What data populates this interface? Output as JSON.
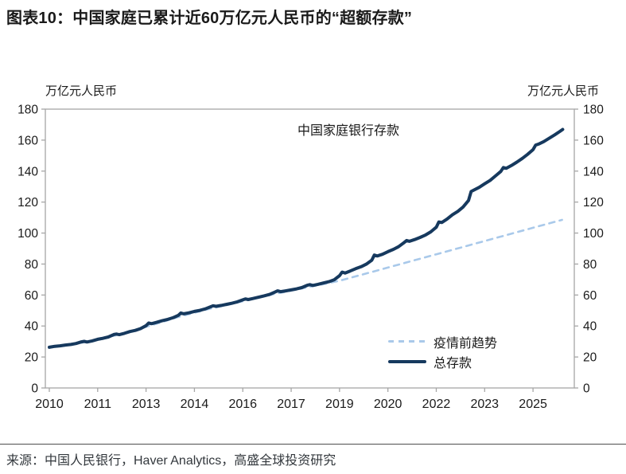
{
  "title": "图表10：中国家庭已累计近60万亿元人民币的“超额存款”",
  "source": "来源：中国人民银行，Haver Analytics，高盛全球投资研究",
  "chart_data": {
    "type": "line",
    "annotation": "中国家庭银行存款",
    "unit_left": "万亿元人民币",
    "unit_right": "万亿元人民币",
    "xlim": [
      2009.877,
      2026.28
    ],
    "ylim": [
      0,
      180
    ],
    "y_ticks": [
      0,
      20,
      40,
      60,
      80,
      100,
      120,
      140,
      160,
      180
    ],
    "x_tick_labels": [
      "2010",
      "2011",
      "2013",
      "2014",
      "2016",
      "2017",
      "2019",
      "2020",
      "2022",
      "2023",
      "2025"
    ],
    "x_tick_times": [
      2010.0,
      2011.5,
      2013.0,
      2014.5,
      2016.0,
      2017.5,
      2019.0,
      2020.5,
      2022.0,
      2023.5,
      2025.0
    ],
    "grid": false,
    "legend_position": "inside-lower-right",
    "axis_color": "#A6A6A6",
    "tick_label_color": "#1a1a1a",
    "series": [
      {
        "name": "疫情前趋势",
        "style": "dashed",
        "color": "#A9C9EA",
        "width": 2.6,
        "points": [
          [
            2010.0,
            26.0
          ],
          [
            2010.5,
            27.4
          ],
          [
            2011.0,
            29.2
          ],
          [
            2011.5,
            31.2
          ],
          [
            2012.0,
            33.7
          ],
          [
            2012.5,
            36.2
          ],
          [
            2013.0,
            39.5
          ],
          [
            2013.5,
            42.6
          ],
          [
            2014.0,
            45.8
          ],
          [
            2014.5,
            48.6
          ],
          [
            2015.0,
            51.3
          ],
          [
            2015.5,
            53.5
          ],
          [
            2016.0,
            56.0
          ],
          [
            2016.5,
            58.2
          ],
          [
            2017.0,
            60.8
          ],
          [
            2017.5,
            62.8
          ],
          [
            2018.0,
            65.0
          ],
          [
            2018.5,
            67.0
          ],
          [
            2019.0,
            69.2
          ],
          [
            2020.0,
            74.9
          ],
          [
            2021.0,
            80.6
          ],
          [
            2022.0,
            86.3
          ],
          [
            2023.0,
            92.0
          ],
          [
            2024.0,
            97.7
          ],
          [
            2025.0,
            103.4
          ],
          [
            2025.9,
            108.5
          ]
        ]
      },
      {
        "name": "总存款",
        "style": "solid",
        "color": "#16395E",
        "width": 4,
        "points": [
          [
            2010.0,
            26.3
          ],
          [
            2010.17,
            26.9
          ],
          [
            2010.33,
            27.2
          ],
          [
            2010.5,
            27.7
          ],
          [
            2010.67,
            28.1
          ],
          [
            2010.83,
            28.7
          ],
          [
            2011.0,
            29.8
          ],
          [
            2011.08,
            30.1
          ],
          [
            2011.17,
            29.7
          ],
          [
            2011.33,
            30.4
          ],
          [
            2011.5,
            31.4
          ],
          [
            2011.67,
            32.1
          ],
          [
            2011.83,
            32.9
          ],
          [
            2012.0,
            34.5
          ],
          [
            2012.08,
            34.8
          ],
          [
            2012.17,
            34.4
          ],
          [
            2012.33,
            35.3
          ],
          [
            2012.5,
            36.4
          ],
          [
            2012.67,
            37.2
          ],
          [
            2012.83,
            38.3
          ],
          [
            2013.0,
            40.2
          ],
          [
            2013.08,
            41.9
          ],
          [
            2013.17,
            41.5
          ],
          [
            2013.33,
            42.4
          ],
          [
            2013.5,
            43.4
          ],
          [
            2013.67,
            44.3
          ],
          [
            2013.83,
            45.3
          ],
          [
            2014.0,
            46.9
          ],
          [
            2014.08,
            48.4
          ],
          [
            2014.17,
            47.9
          ],
          [
            2014.33,
            48.5
          ],
          [
            2014.5,
            49.4
          ],
          [
            2014.67,
            50.1
          ],
          [
            2014.83,
            51.0
          ],
          [
            2015.0,
            52.4
          ],
          [
            2015.08,
            53.1
          ],
          [
            2015.17,
            52.7
          ],
          [
            2015.33,
            53.3
          ],
          [
            2015.5,
            54.0
          ],
          [
            2015.67,
            54.7
          ],
          [
            2015.83,
            55.6
          ],
          [
            2016.0,
            56.9
          ],
          [
            2016.08,
            57.5
          ],
          [
            2016.17,
            57.1
          ],
          [
            2016.33,
            57.8
          ],
          [
            2016.5,
            58.7
          ],
          [
            2016.67,
            59.5
          ],
          [
            2016.83,
            60.4
          ],
          [
            2017.0,
            61.9
          ],
          [
            2017.08,
            62.7
          ],
          [
            2017.17,
            62.2
          ],
          [
            2017.33,
            62.7
          ],
          [
            2017.5,
            63.3
          ],
          [
            2017.67,
            64.0
          ],
          [
            2017.83,
            64.8
          ],
          [
            2018.0,
            66.3
          ],
          [
            2018.08,
            66.7
          ],
          [
            2018.17,
            66.2
          ],
          [
            2018.33,
            66.9
          ],
          [
            2018.5,
            67.8
          ],
          [
            2018.67,
            68.6
          ],
          [
            2018.83,
            69.8
          ],
          [
            2019.0,
            72.5
          ],
          [
            2019.08,
            74.8
          ],
          [
            2019.17,
            74.2
          ],
          [
            2019.33,
            75.5
          ],
          [
            2019.5,
            77.0
          ],
          [
            2019.67,
            78.3
          ],
          [
            2019.83,
            79.9
          ],
          [
            2020.0,
            82.5
          ],
          [
            2020.08,
            85.8
          ],
          [
            2020.17,
            85.2
          ],
          [
            2020.33,
            86.3
          ],
          [
            2020.5,
            88.0
          ],
          [
            2020.67,
            89.5
          ],
          [
            2020.83,
            91.2
          ],
          [
            2021.0,
            93.8
          ],
          [
            2021.08,
            95.2
          ],
          [
            2021.17,
            94.7
          ],
          [
            2021.33,
            95.8
          ],
          [
            2021.5,
            97.2
          ],
          [
            2021.67,
            98.8
          ],
          [
            2021.83,
            100.8
          ],
          [
            2022.0,
            103.8
          ],
          [
            2022.08,
            107.2
          ],
          [
            2022.17,
            106.8
          ],
          [
            2022.33,
            109.0
          ],
          [
            2022.5,
            111.8
          ],
          [
            2022.67,
            114.0
          ],
          [
            2022.83,
            116.8
          ],
          [
            2023.0,
            121.0
          ],
          [
            2023.08,
            126.8
          ],
          [
            2023.17,
            127.8
          ],
          [
            2023.33,
            129.5
          ],
          [
            2023.5,
            131.8
          ],
          [
            2023.67,
            134.0
          ],
          [
            2023.83,
            136.8
          ],
          [
            2024.0,
            139.8
          ],
          [
            2024.08,
            142.3
          ],
          [
            2024.17,
            141.8
          ],
          [
            2024.33,
            143.6
          ],
          [
            2024.5,
            145.8
          ],
          [
            2024.67,
            148.2
          ],
          [
            2024.83,
            150.8
          ],
          [
            2025.0,
            153.8
          ],
          [
            2025.08,
            156.8
          ],
          [
            2025.17,
            157.4
          ],
          [
            2025.33,
            159.0
          ],
          [
            2025.5,
            161.2
          ],
          [
            2025.67,
            163.4
          ],
          [
            2025.83,
            165.6
          ],
          [
            2025.92,
            166.9
          ]
        ]
      }
    ]
  }
}
